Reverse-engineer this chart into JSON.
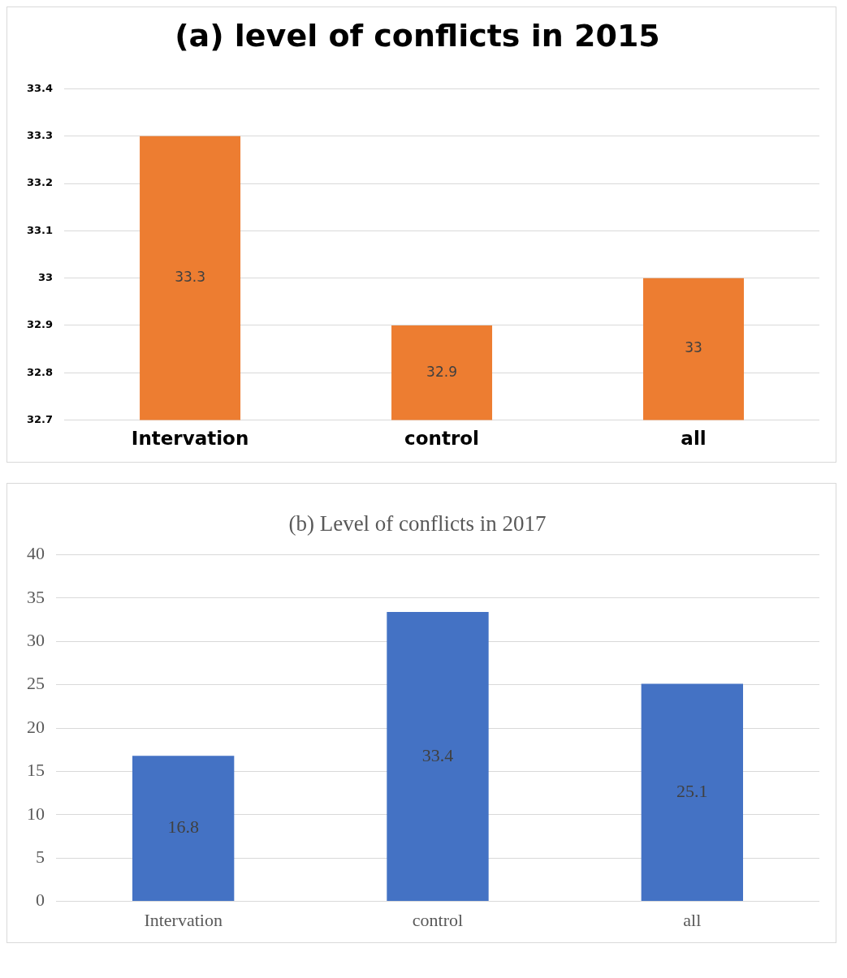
{
  "chart_data": [
    {
      "type": "bar",
      "title": "(a) level of conflicts in 2015",
      "categories": [
        "Intervation",
        "control",
        "all"
      ],
      "values": [
        33.3,
        32.9,
        33
      ],
      "color": "#ed7d31",
      "ylim": [
        32.7,
        33.4
      ],
      "yticks": [
        32.7,
        32.8,
        32.9,
        33,
        33.1,
        33.2,
        33.3,
        33.4
      ],
      "grid": "y",
      "data_labels": true
    },
    {
      "type": "bar",
      "title": "(b) Level of conflicts in 2017",
      "categories": [
        "Intervation",
        "control",
        "all"
      ],
      "values": [
        16.8,
        33.4,
        25.1
      ],
      "color": "#4472c4",
      "ylim": [
        0,
        40
      ],
      "yticks": [
        0,
        5,
        10,
        15,
        20,
        25,
        30,
        35,
        40
      ],
      "grid": "y",
      "data_labels": true
    }
  ]
}
